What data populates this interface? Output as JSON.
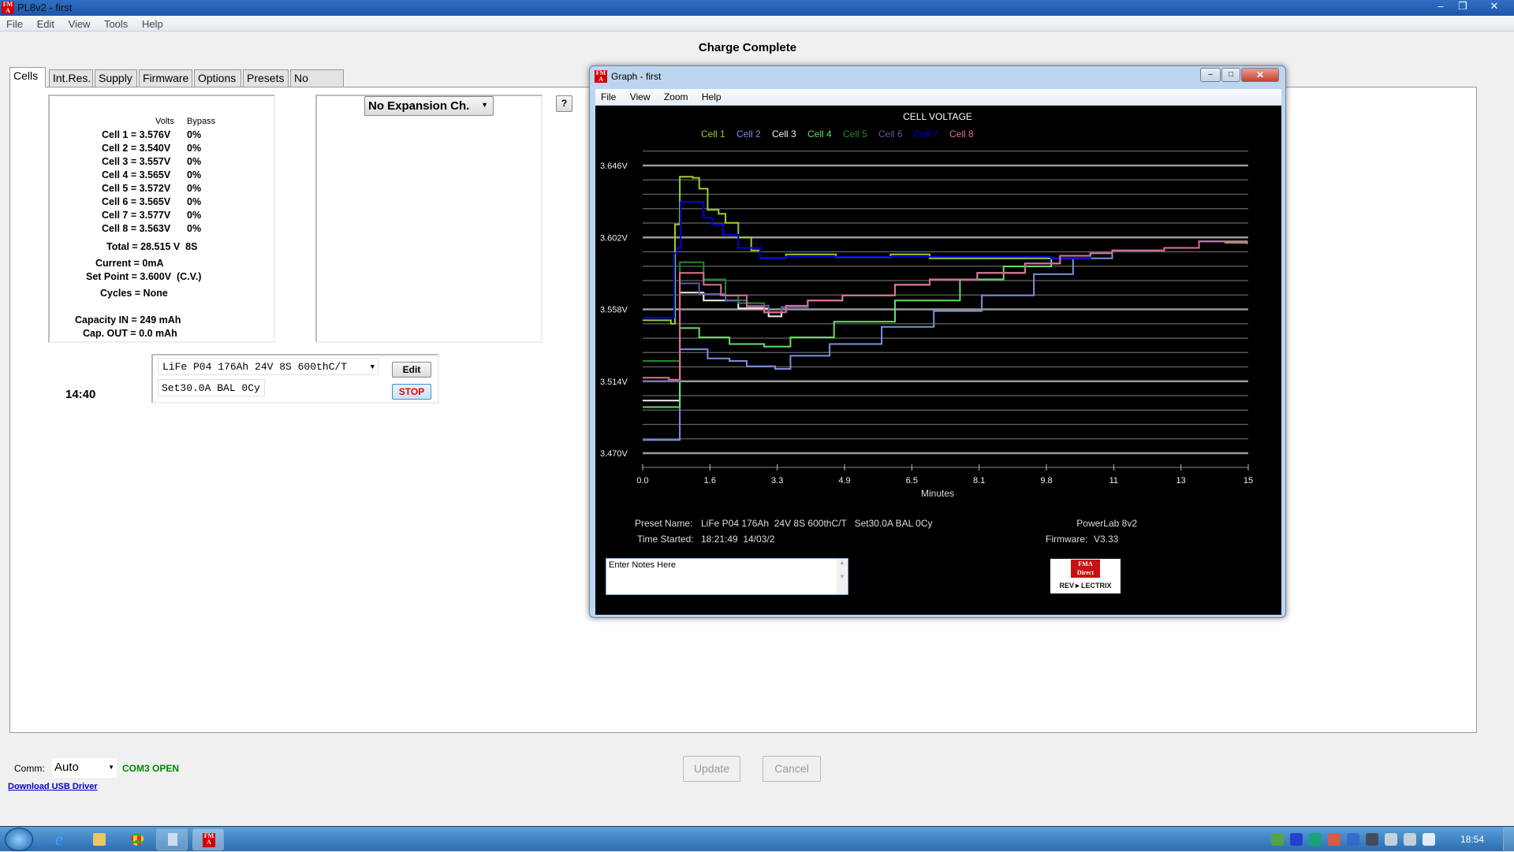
{
  "window": {
    "title": "PL8v2 - first",
    "menu": [
      "File",
      "Edit",
      "View",
      "Tools",
      "Help"
    ]
  },
  "status_title": "Charge Complete",
  "tabs": [
    "Cells",
    "Int.Res.",
    "Supply",
    "Firmware",
    "Options",
    "Presets",
    "No Errors"
  ],
  "cells": {
    "header_volts": "Volts",
    "header_bypass": "Bypass",
    "rows": [
      {
        "label": "Cell 1 = 3.576V",
        "bypass": "0%"
      },
      {
        "label": "Cell 2 = 3.540V",
        "bypass": "0%"
      },
      {
        "label": "Cell 3 = 3.557V",
        "bypass": "0%"
      },
      {
        "label": "Cell 4 = 3.565V",
        "bypass": "0%"
      },
      {
        "label": "Cell 5 = 3.572V",
        "bypass": "0%"
      },
      {
        "label": "Cell 6 = 3.565V",
        "bypass": "0%"
      },
      {
        "label": "Cell 7 = 3.577V",
        "bypass": "0%"
      },
      {
        "label": "Cell 8 = 3.563V",
        "bypass": "0%"
      }
    ],
    "total": "Total = 28.515 V  8S",
    "current": "Current = 0mA",
    "set_point": "Set Point = 3.600V  (C.V.)",
    "cycles": "Cycles = None",
    "capacity_in": "Capacity IN = 249 mAh",
    "cap_out": "Cap. OUT = 0.0 mAh"
  },
  "expansion": {
    "selected": "No Expansion Ch.",
    "help": "?"
  },
  "preset": {
    "name": "LiFe P04 176Ah 24V 8S 600thC/T",
    "settings": "Set30.0A BAL 0Cy",
    "edit": "Edit",
    "stop": "STOP"
  },
  "timer": "14:40",
  "comm": {
    "label": "Comm:",
    "value": "Auto",
    "status": "COM3 OPEN",
    "driver_link": "Download USB Driver"
  },
  "buttons": {
    "update": "Update",
    "cancel": "Cancel"
  },
  "graph_window": {
    "title": "Graph - first",
    "menu": [
      "File",
      "View",
      "Zoom",
      "Help"
    ],
    "preset_label": "Preset Name:",
    "preset_value": "LiFe P04 176Ah  24V 8S 600thC/T   Set30.0A BAL 0Cy",
    "time_label": "Time Started:",
    "time_value": "18:21:49  14/03/2",
    "device": "PowerLab 8v2",
    "firmware_label": "Firmware:",
    "firmware_value": "V3.33",
    "notes_value": "Enter Notes Here",
    "logo_top": "FMA Direct",
    "logo_bottom": "REVOLECTRIX"
  },
  "chart_data": {
    "type": "line",
    "title": "CELL VOLTAGE",
    "xlabel": "Minutes",
    "ylabel": "",
    "xlim": [
      0,
      15
    ],
    "ylim": [
      3.47,
      3.6548
    ],
    "x_ticks": [
      "0.0",
      "1.6",
      "3.3",
      "4.9",
      "6.5",
      "8.1",
      "9.8",
      "11",
      "13",
      "15"
    ],
    "y_ticks": [
      {
        "v": 3.646,
        "label": "3.646V"
      },
      {
        "v": 3.602,
        "label": "3.602V"
      },
      {
        "v": 3.558,
        "label": "3.558V"
      },
      {
        "v": 3.514,
        "label": "3.514V"
      },
      {
        "v": 3.47,
        "label": "3.470V"
      }
    ],
    "grid_step": 0.0088,
    "grid": true,
    "legend_placement": "top",
    "background": "#000000",
    "series": [
      {
        "name": "Cell 1",
        "color": "#9acd32",
        "points": [
          [
            0,
            3.5513
          ],
          [
            0.7,
            3.5492
          ],
          [
            0.8,
            3.61
          ],
          [
            0.92,
            3.6391
          ],
          [
            1.24,
            3.6385
          ],
          [
            1.4,
            3.6318
          ],
          [
            1.61,
            3.6189
          ],
          [
            1.88,
            3.6165
          ],
          [
            2.05,
            3.6109
          ],
          [
            2.37,
            3.602
          ],
          [
            2.69,
            3.594
          ],
          [
            2.91,
            3.5892
          ],
          [
            3.23,
            3.5892
          ],
          [
            3.55,
            3.5916
          ],
          [
            4.63,
            3.5916
          ],
          [
            4.79,
            3.59
          ],
          [
            5.71,
            3.59
          ],
          [
            6.14,
            3.5916
          ],
          [
            6.57,
            3.5916
          ],
          [
            7.11,
            3.5892
          ],
          [
            10.12,
            3.5892
          ],
          [
            11.09,
            3.5924
          ],
          [
            11.63,
            3.594
          ],
          [
            12.92,
            3.5956
          ],
          [
            13.78,
            3.5996
          ],
          [
            14.43,
            3.5988
          ],
          [
            14.97,
            3.5979
          ]
        ]
      },
      {
        "name": "Cell 2",
        "color": "#7b8fe0",
        "points": [
          [
            0,
            3.4781
          ],
          [
            0.7,
            3.4781
          ],
          [
            0.92,
            3.5336
          ],
          [
            1.24,
            3.5336
          ],
          [
            1.61,
            3.528
          ],
          [
            2.15,
            3.5264
          ],
          [
            2.58,
            3.5232
          ],
          [
            3.28,
            3.5216
          ],
          [
            3.66,
            3.5296
          ],
          [
            4.63,
            3.5368
          ],
          [
            5.92,
            3.5473
          ],
          [
            7.21,
            3.557
          ],
          [
            8.4,
            3.5666
          ],
          [
            9.69,
            3.5795
          ],
          [
            10.66,
            3.5892
          ],
          [
            11.63,
            3.594
          ],
          [
            12.92,
            3.5956
          ],
          [
            13.78,
            3.5996
          ],
          [
            14.97,
            3.5979
          ]
        ]
      },
      {
        "name": "Cell 3",
        "color": "#f0f0f0",
        "points": [
          [
            0,
            3.5022
          ],
          [
            0.7,
            3.5022
          ],
          [
            0.92,
            3.5682
          ],
          [
            1.51,
            3.5634
          ],
          [
            2.37,
            3.5586
          ],
          [
            3.12,
            3.5537
          ],
          [
            3.44,
            3.5594
          ],
          [
            4.09,
            3.5634
          ],
          [
            4.95,
            3.5666
          ],
          [
            6.25,
            3.5731
          ],
          [
            7.11,
            3.5763
          ],
          [
            8.29,
            3.5803
          ],
          [
            9.47,
            3.586
          ],
          [
            10.34,
            3.5908
          ],
          [
            11.09,
            3.5924
          ],
          [
            11.63,
            3.594
          ],
          [
            12.92,
            3.5956
          ],
          [
            13.78,
            3.5996
          ],
          [
            14.97,
            3.5979
          ]
        ]
      },
      {
        "name": "Cell 4",
        "color": "#66dd66",
        "points": [
          [
            0,
            3.4982
          ],
          [
            0.7,
            3.4982
          ],
          [
            0.92,
            3.5465
          ],
          [
            1.4,
            3.5409
          ],
          [
            2.15,
            3.5368
          ],
          [
            3.01,
            3.5352
          ],
          [
            3.66,
            3.5409
          ],
          [
            4.74,
            3.5505
          ],
          [
            6.25,
            3.5634
          ],
          [
            7.86,
            3.5763
          ],
          [
            8.94,
            3.5843
          ],
          [
            10.12,
            3.5892
          ],
          [
            11.09,
            3.5924
          ],
          [
            11.63,
            3.594
          ],
          [
            12.92,
            3.5956
          ],
          [
            13.78,
            3.5996
          ],
          [
            14.97,
            3.5979
          ]
        ]
      },
      {
        "name": "Cell 5",
        "color": "#228b22",
        "points": [
          [
            0,
            3.5264
          ],
          [
            0.7,
            3.5264
          ],
          [
            0.92,
            3.5868
          ],
          [
            1.51,
            3.5763
          ],
          [
            2.05,
            3.5666
          ],
          [
            2.37,
            3.5618
          ],
          [
            3.01,
            3.5562
          ],
          [
            3.44,
            3.5594
          ],
          [
            4.09,
            3.5634
          ],
          [
            4.95,
            3.5666
          ],
          [
            6.25,
            3.5731
          ],
          [
            7.11,
            3.5763
          ],
          [
            8.29,
            3.5803
          ],
          [
            9.47,
            3.586
          ],
          [
            10.34,
            3.5908
          ],
          [
            11.09,
            3.5924
          ],
          [
            11.63,
            3.594
          ],
          [
            12.92,
            3.5956
          ],
          [
            13.78,
            3.5996
          ],
          [
            14.97,
            3.5979
          ]
        ]
      },
      {
        "name": "Cell 6",
        "color": "#5a5aa8",
        "points": [
          [
            0,
            3.5143
          ],
          [
            0.7,
            3.5143
          ],
          [
            0.92,
            3.5739
          ],
          [
            1.4,
            3.5674
          ],
          [
            2.05,
            3.5634
          ],
          [
            2.58,
            3.5602
          ],
          [
            3.12,
            3.5562
          ],
          [
            3.44,
            3.5594
          ],
          [
            4.09,
            3.5634
          ],
          [
            4.95,
            3.5666
          ],
          [
            6.25,
            3.5731
          ],
          [
            7.11,
            3.5763
          ],
          [
            8.29,
            3.5803
          ],
          [
            9.47,
            3.586
          ],
          [
            10.34,
            3.5908
          ],
          [
            11.09,
            3.5924
          ],
          [
            11.63,
            3.594
          ],
          [
            12.92,
            3.5956
          ],
          [
            13.78,
            3.5996
          ],
          [
            14.97,
            3.5979
          ]
        ]
      },
      {
        "name": "Cell 7",
        "color": "#0000e0",
        "points": [
          [
            0,
            3.5529
          ],
          [
            0.7,
            3.5529
          ],
          [
            0.78,
            3.5924
          ],
          [
            0.86,
            3.5956
          ],
          [
            0.94,
            3.6238
          ],
          [
            1.24,
            3.6238
          ],
          [
            1.51,
            3.6141
          ],
          [
            1.72,
            3.6101
          ],
          [
            1.99,
            3.6037
          ],
          [
            2.37,
            3.5956
          ],
          [
            2.91,
            3.5892
          ],
          [
            3.55,
            3.5902
          ],
          [
            10.12,
            3.5892
          ],
          [
            11.09,
            3.5924
          ],
          [
            11.63,
            3.594
          ],
          [
            12.92,
            3.5956
          ],
          [
            13.78,
            3.5996
          ],
          [
            14.97,
            3.5979
          ]
        ]
      },
      {
        "name": "Cell 8",
        "color": "#e07090",
        "points": [
          [
            0,
            3.5162
          ],
          [
            0.65,
            3.515
          ],
          [
            0.92,
            3.5803
          ],
          [
            1.51,
            3.5731
          ],
          [
            1.94,
            3.5666
          ],
          [
            2.58,
            3.5594
          ],
          [
            3.01,
            3.5562
          ],
          [
            3.55,
            3.5602
          ],
          [
            4.09,
            3.5634
          ],
          [
            4.95,
            3.5666
          ],
          [
            6.25,
            3.5731
          ],
          [
            7.11,
            3.5763
          ],
          [
            8.29,
            3.5803
          ],
          [
            9.47,
            3.586
          ],
          [
            10.34,
            3.5908
          ],
          [
            11.09,
            3.5924
          ],
          [
            11.63,
            3.594
          ],
          [
            12.92,
            3.5956
          ],
          [
            13.78,
            3.5996
          ],
          [
            14.97,
            3.5979
          ]
        ]
      }
    ]
  },
  "taskbar": {
    "clock": "18:54",
    "tray_icons": [
      "nvidia-icon",
      "zonealarm-icon",
      "security-icon",
      "ccleaner-icon",
      "network-lock-icon",
      "satellite-icon",
      "network-icon",
      "volume-icon",
      "flag-icon"
    ]
  }
}
